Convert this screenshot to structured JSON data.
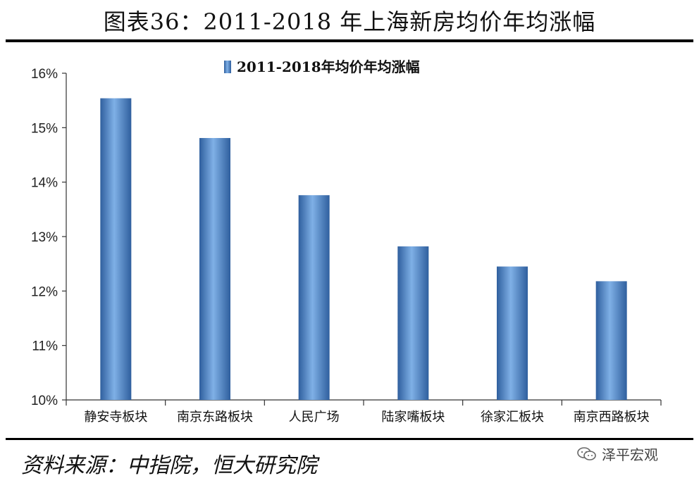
{
  "header": {
    "title": "图表36：2011-2018 年上海新房均价年均涨幅"
  },
  "chart_data": {
    "type": "bar",
    "title": "",
    "xlabel": "",
    "ylabel": "",
    "legend": {
      "label": "2011-2018年均价年均涨幅",
      "placement": "top-center"
    },
    "categories": [
      "静安寺板块",
      "南京东路板块",
      "人民广场",
      "陆家嘴板块",
      "徐家汇板块",
      "南京西路板块"
    ],
    "series": [
      {
        "name": "2011-2018年均价年均涨幅",
        "values": [
          15.54,
          14.81,
          13.76,
          12.82,
          12.45,
          12.18
        ]
      }
    ],
    "ylim": [
      10,
      16
    ],
    "yticks": [
      "10%",
      "11%",
      "12%",
      "13%",
      "14%",
      "15%",
      "16%"
    ],
    "grid": false,
    "bar_color": "#4a7fc1"
  },
  "footer": {
    "source": "资料来源：中指院，恒大研究院",
    "watermark": "泽平宏观"
  }
}
